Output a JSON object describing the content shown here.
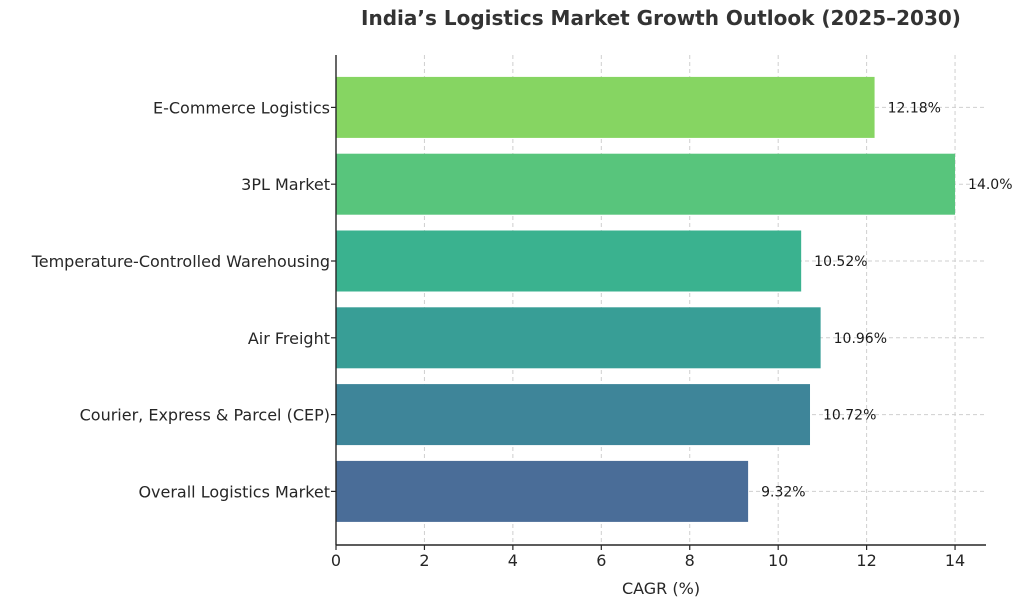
{
  "chart_data": {
    "type": "bar",
    "orientation": "horizontal",
    "title": "India’s Logistics Market Growth Outlook (2025–2030)",
    "xlabel": "CAGR (%)",
    "ylabel": "",
    "xlim": [
      0,
      14.7
    ],
    "xticks": [
      0,
      2,
      4,
      6,
      8,
      10,
      12,
      14
    ],
    "grid": true,
    "categories": [
      "E-Commerce Logistics",
      "3PL Market",
      "Temperature-Controlled Warehousing",
      "Air Freight",
      "Courier, Express & Parcel (CEP)",
      "Overall Logistics Market"
    ],
    "values": [
      12.18,
      14.0,
      10.52,
      10.96,
      10.72,
      9.32
    ],
    "data_labels": [
      "12.18%",
      "14.0%",
      "10.52%",
      "10.96%",
      "10.72%",
      "9.32%"
    ],
    "colors": [
      "#86d562",
      "#58c57c",
      "#3ab28f",
      "#389e96",
      "#3e8599",
      "#4a6d98"
    ]
  }
}
